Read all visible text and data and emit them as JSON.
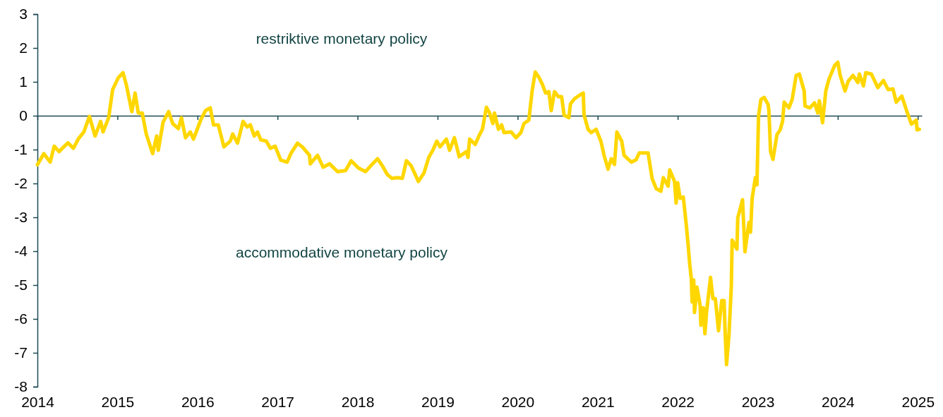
{
  "chart_data": {
    "type": "line",
    "annotations": [
      "restriktive monetary policy",
      "accommodative monetary policy"
    ],
    "xlim": [
      2014,
      2025.05
    ],
    "xticks": [
      2014,
      2015,
      2016,
      2017,
      2018,
      2019,
      2020,
      2021,
      2022,
      2023,
      2024,
      2025
    ],
    "ylim": [
      -8,
      3
    ],
    "yticks": [
      -8,
      -7,
      -6,
      -5,
      -4,
      -3,
      -2,
      -1,
      0,
      1,
      2,
      3
    ],
    "marker": "none",
    "line_style": "solid",
    "series": [
      {
        "color": "#ffd700",
        "x": [
          2014.0,
          2014.08,
          2014.16,
          2014.21,
          2014.27,
          2014.38,
          2014.45,
          2014.51,
          2014.58,
          2014.65,
          2014.72,
          2014.79,
          2014.82,
          2014.89,
          2014.94,
          2015.01,
          2015.07,
          2015.11,
          2015.18,
          2015.22,
          2015.26,
          2015.31,
          2015.36,
          2015.44,
          2015.49,
          2015.51,
          2015.57,
          2015.64,
          2015.69,
          2015.76,
          2015.8,
          2015.85,
          2015.91,
          2015.95,
          2016.04,
          2016.1,
          2016.16,
          2016.2,
          2016.26,
          2016.33,
          2016.41,
          2016.44,
          2016.5,
          2016.57,
          2016.62,
          2016.66,
          2016.71,
          2016.75,
          2016.79,
          2016.86,
          2016.91,
          2016.97,
          2017.04,
          2017.12,
          2017.17,
          2017.25,
          2017.31,
          2017.4,
          2017.41,
          2017.5,
          2017.57,
          2017.65,
          2017.75,
          2017.85,
          2017.92,
          2018.01,
          2018.1,
          2018.18,
          2018.25,
          2018.31,
          2018.37,
          2018.43,
          2018.5,
          2018.56,
          2018.61,
          2018.67,
          2018.76,
          2018.83,
          2018.89,
          2018.94,
          2018.99,
          2019.03,
          2019.11,
          2019.15,
          2019.21,
          2019.27,
          2019.36,
          2019.38,
          2019.4,
          2019.47,
          2019.52,
          2019.56,
          2019.61,
          2019.65,
          2019.69,
          2019.71,
          2019.76,
          2019.8,
          2019.83,
          2019.92,
          2019.98,
          2020.04,
          2020.08,
          2020.14,
          2020.18,
          2020.22,
          2020.27,
          2020.31,
          2020.35,
          2020.39,
          2020.42,
          2020.46,
          2020.51,
          2020.55,
          2020.58,
          2020.64,
          2020.66,
          2020.71,
          2020.77,
          2020.82,
          2020.83,
          2020.88,
          2020.92,
          2020.98,
          2021.04,
          2021.08,
          2021.13,
          2021.17,
          2021.21,
          2021.24,
          2021.3,
          2021.33,
          2021.42,
          2021.48,
          2021.52,
          2021.63,
          2021.68,
          2021.73,
          2021.79,
          2021.82,
          2021.88,
          2021.9,
          2021.96,
          2021.98,
          2022.0,
          2022.03,
          2022.07,
          2022.11,
          2022.13,
          2022.15,
          2022.17,
          2022.18,
          2022.2,
          2022.21,
          2022.24,
          2022.28,
          2022.29,
          2022.32,
          2022.34,
          2022.36,
          2022.41,
          2022.44,
          2022.47,
          2022.51,
          2022.55,
          2022.58,
          2022.59,
          2022.61,
          2022.64,
          2022.67,
          2022.68,
          2022.74,
          2022.75,
          2022.81,
          2022.84,
          2022.89,
          2022.91,
          2022.93,
          2022.97,
          2022.99,
          2023.01,
          2023.04,
          2023.08,
          2023.13,
          2023.14,
          2023.16,
          2023.19,
          2023.24,
          2023.28,
          2023.31,
          2023.33,
          2023.39,
          2023.43,
          2023.48,
          2023.52,
          2023.58,
          2023.59,
          2023.65,
          2023.71,
          2023.75,
          2023.77,
          2023.81,
          2023.85,
          2023.89,
          2023.96,
          2024.0,
          2024.03,
          2024.09,
          2024.13,
          2024.19,
          2024.25,
          2024.27,
          2024.32,
          2024.35,
          2024.42,
          2024.5,
          2024.57,
          2024.63,
          2024.69,
          2024.73,
          2024.8,
          2024.86,
          2024.92,
          2024.98,
          2024.99,
          2025.02
        ],
        "values": [
          -1.45,
          -1.12,
          -1.37,
          -0.9,
          -1.06,
          -0.8,
          -0.96,
          -0.69,
          -0.48,
          -0.02,
          -0.6,
          -0.17,
          -0.48,
          -0.06,
          0.77,
          1.12,
          1.27,
          0.92,
          0.12,
          0.67,
          0.08,
          0.08,
          -0.54,
          -1.12,
          -0.6,
          -1.02,
          -0.19,
          0.12,
          -0.23,
          -0.38,
          -0.06,
          -0.65,
          -0.48,
          -0.69,
          -0.13,
          0.15,
          0.23,
          -0.27,
          -0.27,
          -0.92,
          -0.75,
          -0.54,
          -0.81,
          -0.17,
          -0.33,
          -0.27,
          -0.6,
          -0.48,
          -0.71,
          -0.75,
          -0.96,
          -0.9,
          -1.31,
          -1.37,
          -1.1,
          -0.81,
          -0.92,
          -1.17,
          -1.42,
          -1.17,
          -1.52,
          -1.42,
          -1.65,
          -1.62,
          -1.33,
          -1.54,
          -1.65,
          -1.44,
          -1.27,
          -1.48,
          -1.73,
          -1.85,
          -1.83,
          -1.85,
          -1.33,
          -1.48,
          -1.94,
          -1.69,
          -1.23,
          -1.02,
          -0.75,
          -0.92,
          -0.69,
          -1.02,
          -0.65,
          -1.21,
          -1.06,
          -1.23,
          -0.69,
          -0.85,
          -0.58,
          -0.4,
          0.25,
          0.08,
          -0.23,
          0.08,
          -0.4,
          -0.27,
          -0.5,
          -0.48,
          -0.65,
          -0.5,
          -0.23,
          -0.13,
          0.71,
          1.29,
          1.12,
          0.92,
          0.67,
          0.71,
          0.15,
          0.71,
          0.56,
          0.56,
          0.02,
          -0.06,
          0.35,
          0.5,
          0.6,
          0.67,
          0.02,
          -0.4,
          -0.5,
          -0.4,
          -0.75,
          -1.17,
          -1.58,
          -1.27,
          -1.44,
          -0.48,
          -0.75,
          -1.17,
          -1.37,
          -1.3,
          -1.1,
          -1.1,
          -1.85,
          -2.15,
          -2.23,
          -1.83,
          -2.08,
          -1.6,
          -1.94,
          -2.58,
          -1.98,
          -2.44,
          -2.4,
          -3.29,
          -3.81,
          -4.38,
          -4.81,
          -5.5,
          -4.85,
          -5.81,
          -5.06,
          -5.6,
          -6.19,
          -5.67,
          -6.44,
          -5.81,
          -4.77,
          -5.4,
          -5.4,
          -6.35,
          -5.46,
          -5.46,
          -6.25,
          -7.35,
          -6.5,
          -5.02,
          -3.67,
          -3.94,
          -3.02,
          -2.48,
          -4.02,
          -3.15,
          -3.44,
          -2.44,
          -1.83,
          -2.04,
          0.0,
          0.48,
          0.54,
          0.33,
          0.13,
          -1.06,
          -1.29,
          -0.56,
          -0.42,
          -0.17,
          0.4,
          0.23,
          0.48,
          1.19,
          1.23,
          0.73,
          0.29,
          0.23,
          0.38,
          0.08,
          0.44,
          -0.21,
          0.73,
          1.08,
          1.48,
          1.58,
          1.19,
          0.73,
          1.02,
          1.19,
          0.98,
          1.23,
          0.88,
          1.27,
          1.23,
          0.83,
          1.04,
          0.77,
          0.79,
          0.4,
          0.58,
          0.15,
          -0.25,
          -0.13,
          -0.42,
          -0.4
        ]
      }
    ]
  }
}
